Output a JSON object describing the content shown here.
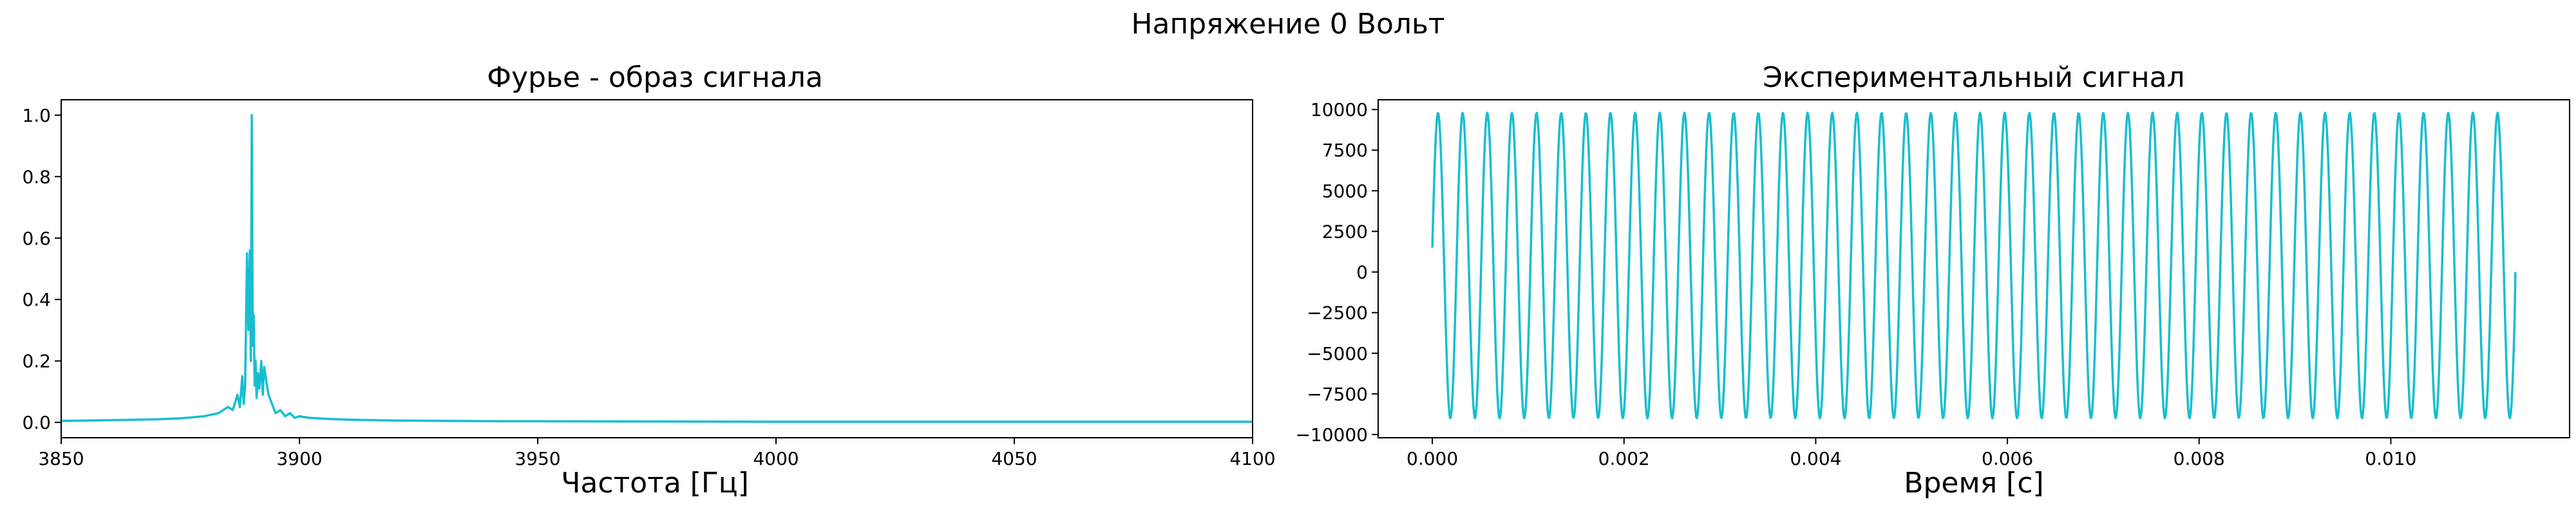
{
  "figure": {
    "suptitle": "Напряжение 0 Вольт"
  },
  "chart_data": [
    {
      "type": "line",
      "title": "Фурье - образ сигнала",
      "xlabel": "Частота [Гц]",
      "ylabel": "",
      "xlim": [
        3850,
        4100
      ],
      "ylim": [
        -0.05,
        1.05
      ],
      "xticks": [
        3850,
        3900,
        3950,
        4000,
        4050,
        4100
      ],
      "xtick_labels": [
        "3850",
        "3900",
        "3950",
        "4000",
        "4050",
        "4100"
      ],
      "yticks": [
        0.0,
        0.2,
        0.4,
        0.6,
        0.8,
        1.0
      ],
      "ytick_labels": [
        "0.0",
        "0.2",
        "0.4",
        "0.6",
        "0.8",
        "1.0"
      ],
      "color": "#17becf",
      "grid": false,
      "series": [
        {
          "x": [
            3850,
            3860,
            3870,
            3875,
            3880,
            3883,
            3885,
            3886,
            3887,
            3887.5,
            3888,
            3888.3,
            3888.6,
            3889,
            3889.3,
            3889.6,
            3889.8,
            3890,
            3890.2,
            3890.4,
            3890.6,
            3890.8,
            3891,
            3891.3,
            3891.6,
            3892,
            3892.3,
            3892.6,
            3893,
            3893.5,
            3894,
            3894.5,
            3895,
            3896,
            3897,
            3898,
            3899,
            3900,
            3902,
            3905,
            3910,
            3920,
            3940,
            3970,
            4000,
            4050,
            4100
          ],
          "y": [
            0.005,
            0.007,
            0.01,
            0.013,
            0.02,
            0.03,
            0.05,
            0.04,
            0.09,
            0.05,
            0.15,
            0.06,
            0.12,
            0.55,
            0.3,
            0.56,
            0.2,
            1.0,
            0.25,
            0.35,
            0.12,
            0.2,
            0.08,
            0.16,
            0.11,
            0.2,
            0.09,
            0.18,
            0.14,
            0.09,
            0.07,
            0.05,
            0.03,
            0.04,
            0.02,
            0.03,
            0.015,
            0.02,
            0.015,
            0.012,
            0.009,
            0.006,
            0.004,
            0.003,
            0.002,
            0.002,
            0.002
          ]
        }
      ]
    },
    {
      "type": "line",
      "title": "Экспериментальный сигнал",
      "xlabel": "Время [с]",
      "ylabel": "",
      "xlim": [
        -0.000565,
        0.011865
      ],
      "ylim": [
        -10200,
        10600
      ],
      "xticks": [
        0.0,
        0.002,
        0.004,
        0.006,
        0.008,
        0.01
      ],
      "xtick_labels": [
        "0.000",
        "0.002",
        "0.004",
        "0.006",
        "0.008",
        "0.010"
      ],
      "yticks": [
        -10000,
        -7500,
        -5000,
        -2500,
        0,
        2500,
        5000,
        7500,
        10000
      ],
      "ytick_labels": [
        "−10000",
        "−7500",
        "−5000",
        "−2500",
        "0",
        "2500",
        "5000",
        "7500",
        "10000"
      ],
      "color": "#17becf",
      "grid": false,
      "series": [
        {
          "signal": {
            "t_start": 0.0,
            "t_end": 0.0113,
            "frequency_hz": 3890,
            "amplitude_max": 9800,
            "amplitude_min": -9000,
            "start_value": 1500,
            "end_value": 0
          }
        }
      ]
    }
  ]
}
